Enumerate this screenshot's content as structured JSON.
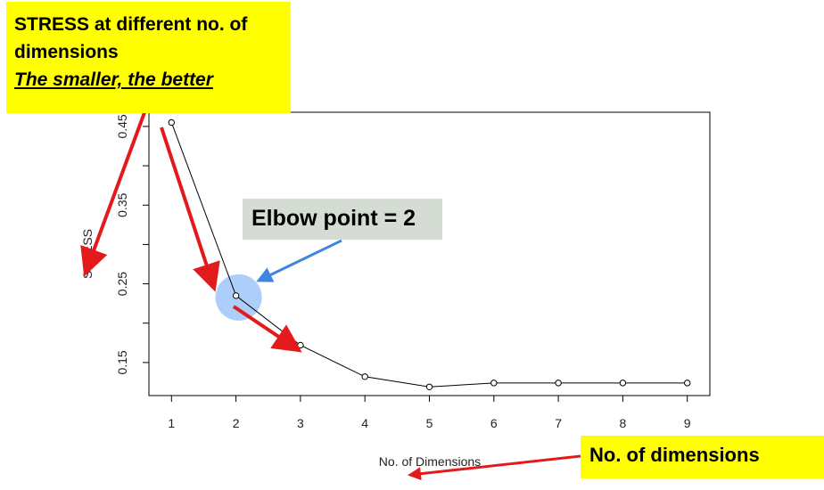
{
  "chart_data": {
    "type": "line",
    "xlabel": "No. of Dimensions",
    "ylabel": "STRESS",
    "x": [
      1,
      2,
      3,
      4,
      5,
      6,
      7,
      8,
      9
    ],
    "y": [
      0.455,
      0.235,
      0.172,
      0.132,
      0.119,
      0.124,
      0.124,
      0.124,
      0.124
    ],
    "xlim": [
      0.65,
      9.35
    ],
    "ylim": [
      0.108,
      0.468
    ],
    "xticks": [
      "1",
      "2",
      "3",
      "4",
      "5",
      "6",
      "7",
      "8",
      "9"
    ],
    "yticks": [
      "0.15",
      "0.25",
      "0.35",
      "0.45"
    ],
    "yticks_values": [
      0.15,
      0.25,
      0.35,
      0.45
    ],
    "yminor_ticks": [
      0.2,
      0.3,
      0.4
    ],
    "marker": "open-circle",
    "grid": false
  },
  "annotations": {
    "title_line1": "STRESS at different no. of",
    "title_line2": "dimensions",
    "subtitle": "The smaller, the better",
    "elbow_label": "Elbow point = 2",
    "elbow_x": 2,
    "xaxis_note": "No. of dimensions"
  },
  "colors": {
    "note_yellow": "#ffff00",
    "elbow_box": "#d4dcd4",
    "highlight_circle": "#9fc5f8",
    "red_arrow": "#e31a1c",
    "blue_arrow": "#3c86e0"
  }
}
